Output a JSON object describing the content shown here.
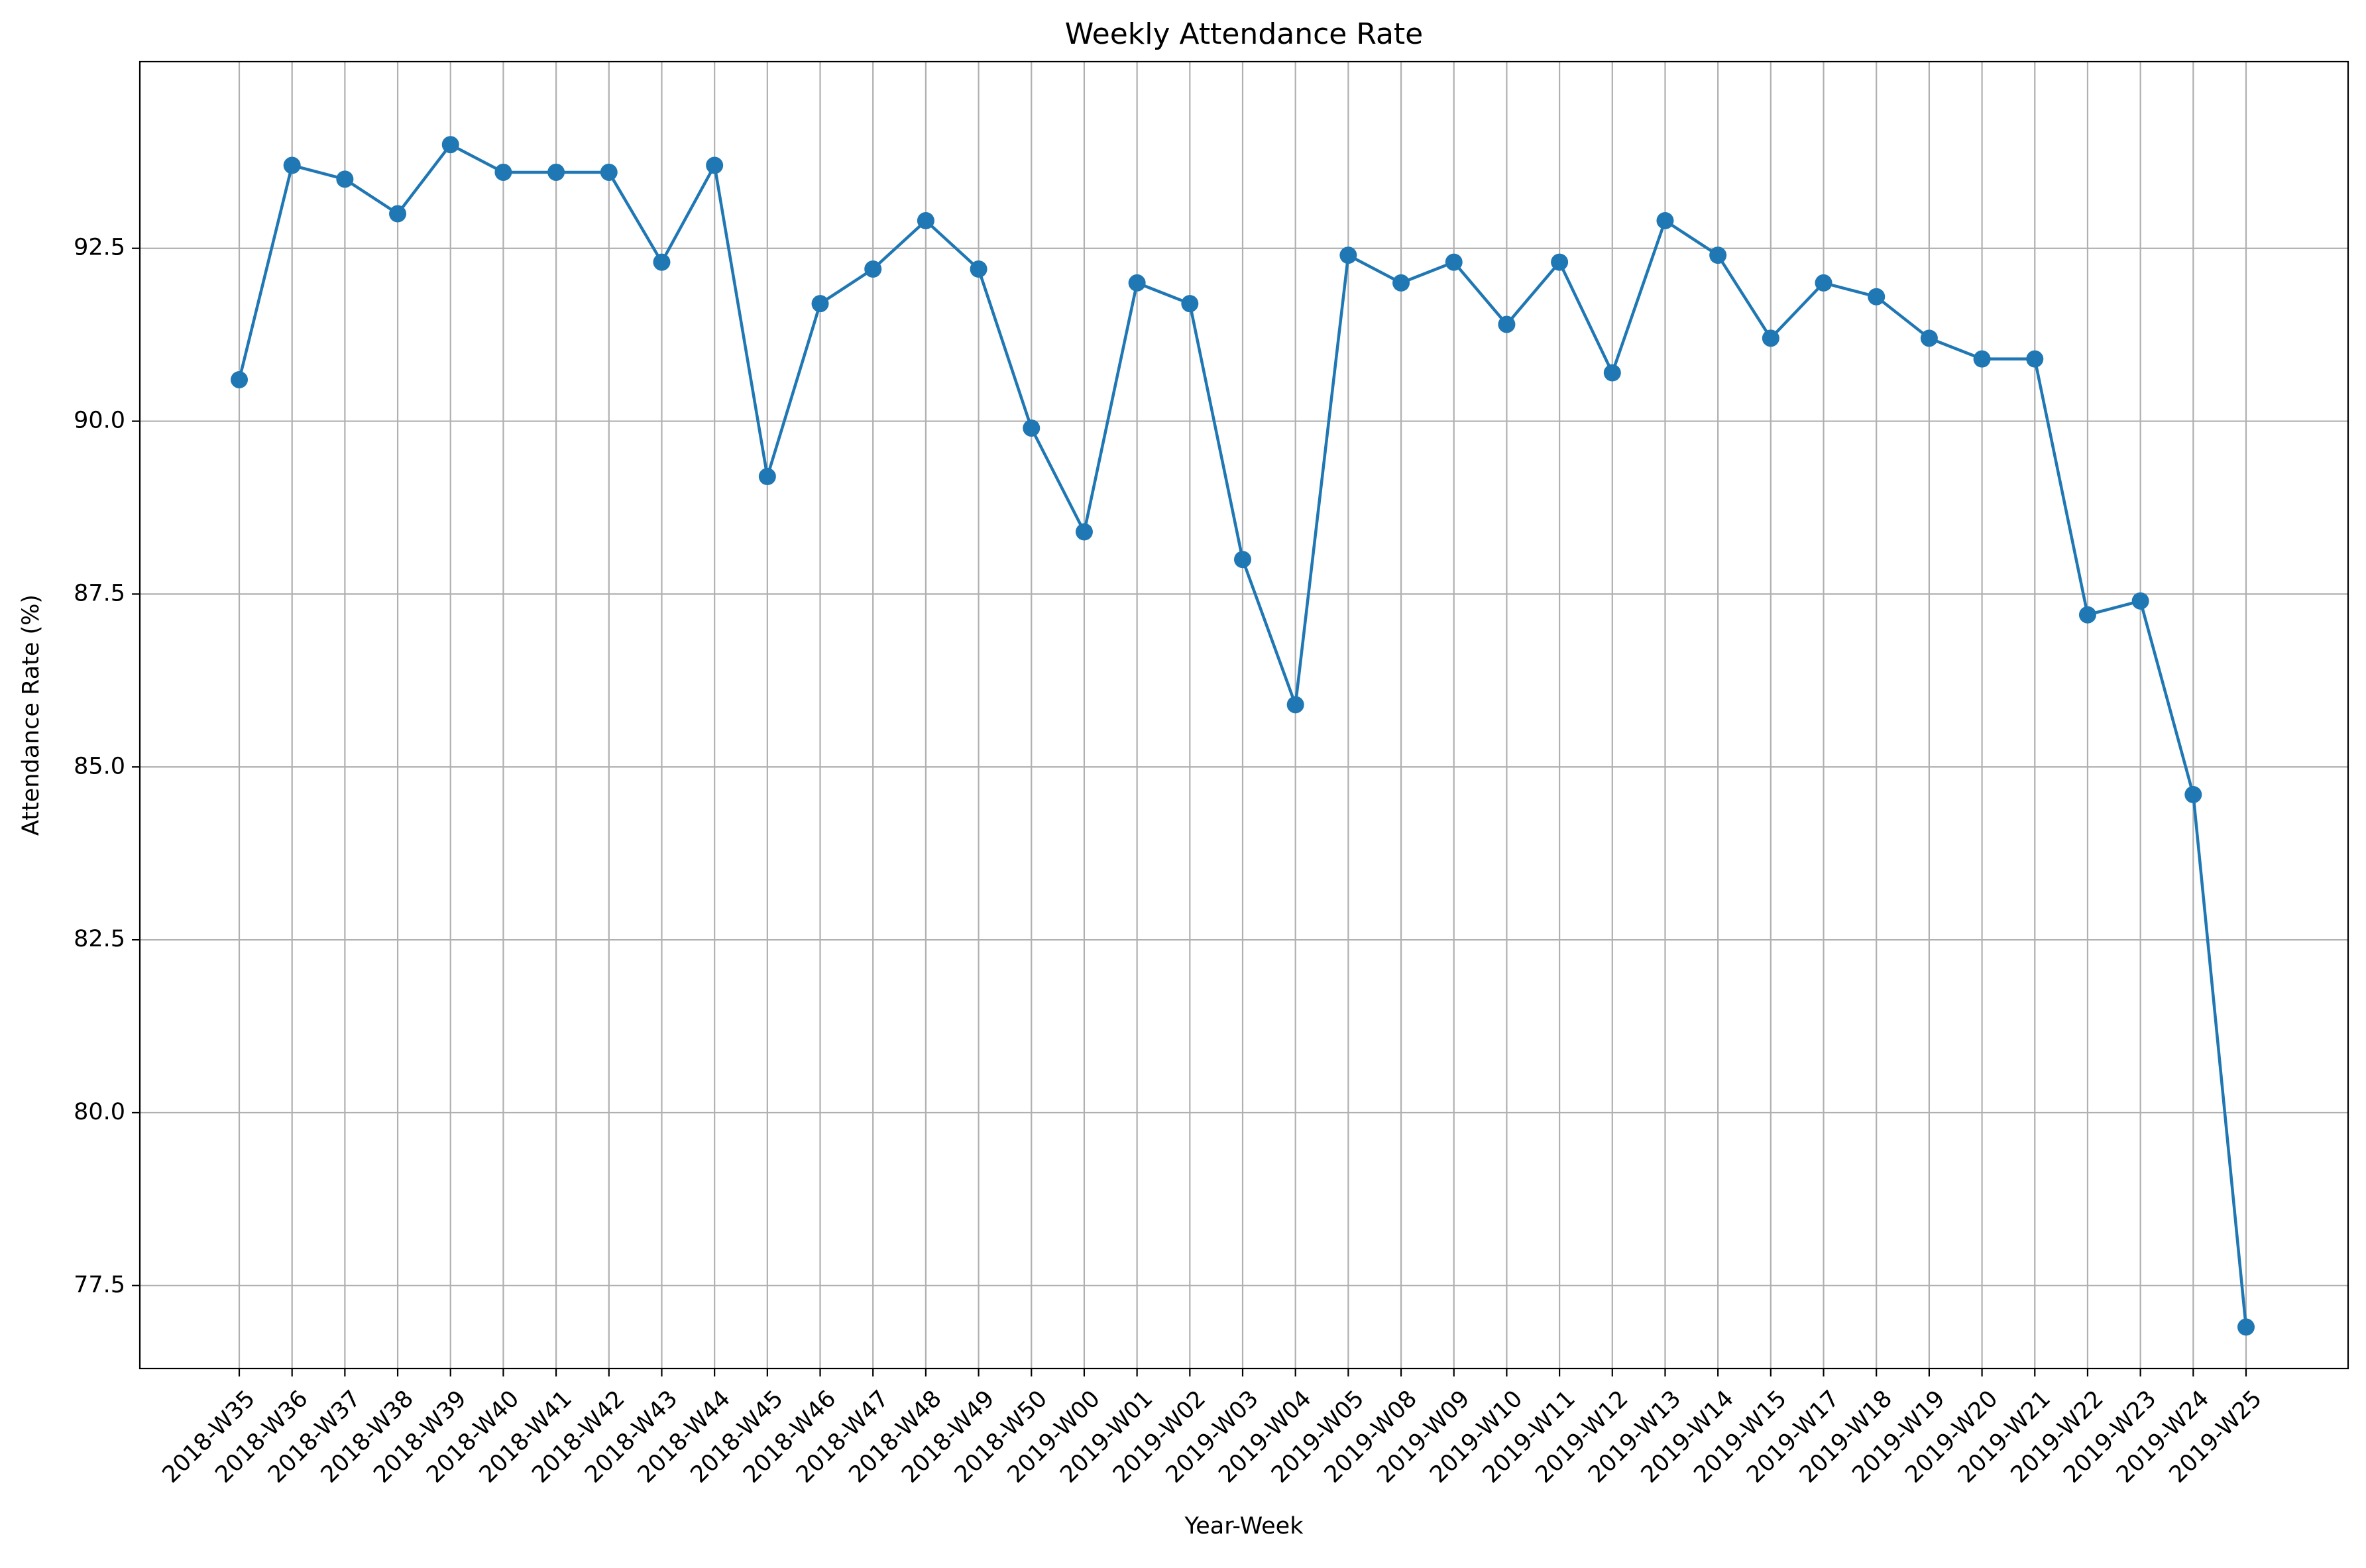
{
  "chart_data": {
    "type": "line",
    "title": "Weekly Attendance Rate",
    "xlabel": "Year-Week",
    "ylabel": "Attendance Rate (%)",
    "categories": [
      "2018-W35",
      "2018-W36",
      "2018-W37",
      "2018-W38",
      "2018-W39",
      "2018-W40",
      "2018-W41",
      "2018-W42",
      "2018-W43",
      "2018-W44",
      "2018-W45",
      "2018-W46",
      "2018-W47",
      "2018-W48",
      "2018-W49",
      "2018-W50",
      "2019-W00",
      "2019-W01",
      "2019-W02",
      "2019-W03",
      "2019-W04",
      "2019-W05",
      "2019-W08",
      "2019-W09",
      "2019-W10",
      "2019-W11",
      "2019-W12",
      "2019-W13",
      "2019-W14",
      "2019-W15",
      "2019-W17",
      "2019-W18",
      "2019-W19",
      "2019-W20",
      "2019-W21",
      "2019-W22",
      "2019-W23",
      "2019-W24",
      "2019-W25"
    ],
    "series": [
      {
        "values": [
          90.6,
          93.7,
          93.5,
          93.0,
          94.0,
          93.6,
          93.6,
          93.6,
          92.3,
          93.7,
          89.2,
          91.7,
          92.2,
          92.9,
          92.2,
          89.9,
          88.4,
          92.0,
          91.7,
          88.0,
          85.9,
          92.4,
          92.0,
          92.3,
          91.4,
          92.3,
          90.7,
          92.9,
          92.4,
          91.2,
          92.0,
          91.8,
          91.2,
          90.9,
          90.9,
          87.2,
          87.4,
          84.6,
          76.9
        ],
        "color": "#1f77b4",
        "marker": "circle"
      }
    ],
    "yticks": [
      77.5,
      80.0,
      82.5,
      85.0,
      87.5,
      90.0,
      92.5
    ],
    "ytick_labels": [
      "77.5",
      "80.0",
      "82.5",
      "85.0",
      "87.5",
      "90.0",
      "92.5"
    ],
    "ylim": [
      76.3,
      95.2
    ],
    "grid": true,
    "legend": "none"
  }
}
